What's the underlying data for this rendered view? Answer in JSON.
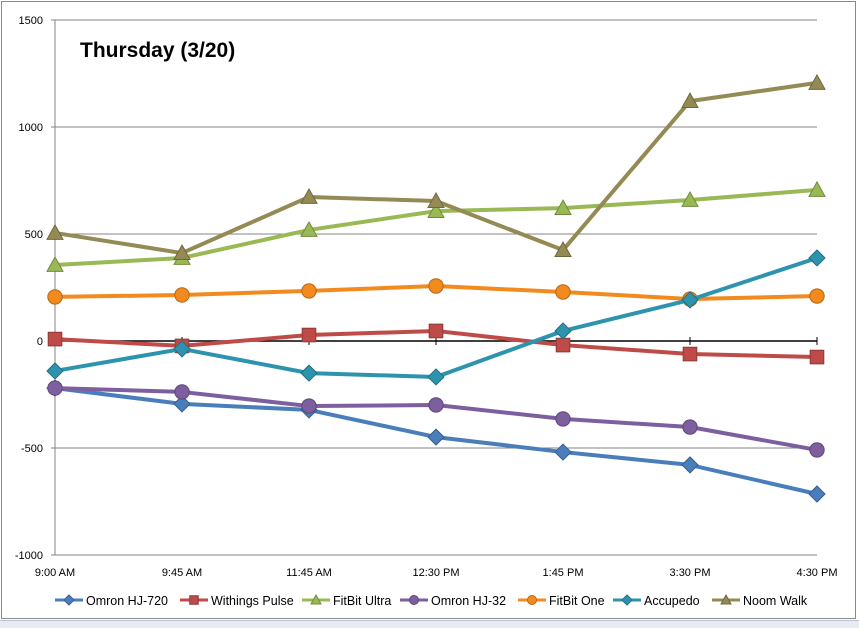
{
  "chart_data": {
    "type": "line",
    "title": "Thursday (3/20)",
    "xlabel": "",
    "ylabel": "",
    "categories": [
      "9:00 AM",
      "9:45 AM",
      "11:45 AM",
      "12:30 PM",
      "1:45 PM",
      "3:30 PM",
      "4:30 PM"
    ],
    "ylim": [
      -1000,
      1500
    ],
    "yticks": [
      -1000,
      -500,
      0,
      500,
      1000,
      1500
    ],
    "ytick_labels": [
      "-1000",
      "-500",
      "0",
      "500",
      "1000",
      "1500"
    ],
    "grid": true,
    "legend_position": "bottom",
    "series": [
      {
        "name": "Omron HJ-720",
        "color": "#4a7ebb",
        "marker": "diamond",
        "values": [
          -220,
          -294,
          -322,
          -449,
          -519,
          -579,
          -715
        ]
      },
      {
        "name": "Withings Pulse",
        "color": "#be4b48",
        "marker": "square",
        "values": [
          9,
          -23,
          28,
          47,
          -19,
          -61,
          -75
        ]
      },
      {
        "name": "FitBit Ultra",
        "color": "#98b954",
        "marker": "triangle",
        "values": [
          355,
          388,
          519,
          607,
          621,
          659,
          706
        ]
      },
      {
        "name": "Omron HJ-32",
        "color": "#7d5fa0",
        "marker": "circle",
        "values": [
          -220,
          -238,
          -304,
          -299,
          -364,
          -402,
          -509
        ]
      },
      {
        "name": "FitBit One",
        "color": "#f28a1e",
        "marker": "circle",
        "values": [
          206,
          215,
          234,
          257,
          229,
          196,
          210
        ]
      },
      {
        "name": "Accupedo",
        "color": "#2e93ad",
        "marker": "diamond",
        "values": [
          -140,
          -37,
          -150,
          -168,
          47,
          192,
          388
        ]
      },
      {
        "name": "Noom Walk",
        "color": "#948a54",
        "marker": "triangle",
        "values": [
          505,
          411,
          673,
          654,
          425,
          1121,
          1206
        ]
      }
    ]
  }
}
